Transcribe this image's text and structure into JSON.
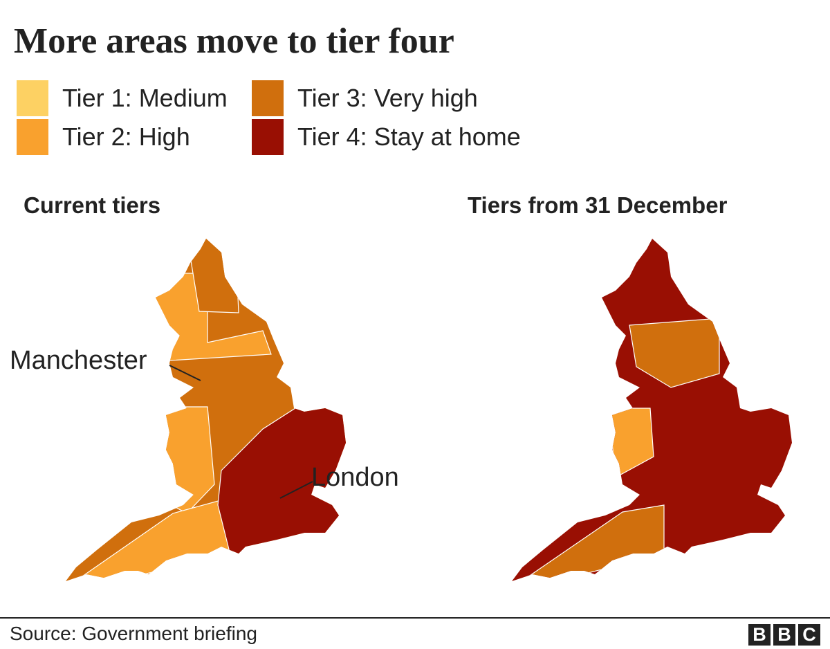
{
  "title": "More areas move to tier four",
  "legend": [
    {
      "label": "Tier 1: Medium",
      "color": "#fdd163"
    },
    {
      "label": "Tier 2: High",
      "color": "#f9a12e"
    },
    {
      "label": "Tier 3: Very high",
      "color": "#d06f0d"
    },
    {
      "label": "Tier 4: Stay at home",
      "color": "#990f03"
    }
  ],
  "maps": [
    {
      "title": "Current tiers",
      "annotations": [
        "Manchester",
        "London"
      ]
    },
    {
      "title": "Tiers from 31 December"
    }
  ],
  "source": "Source: Government briefing",
  "logo": [
    "B",
    "B",
    "C"
  ]
}
